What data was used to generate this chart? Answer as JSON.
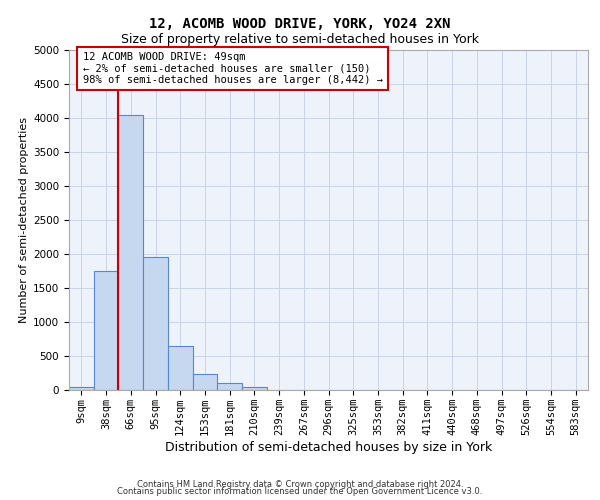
{
  "title_line1": "12, ACOMB WOOD DRIVE, YORK, YO24 2XN",
  "title_line2": "Size of property relative to semi-detached houses in York",
  "xlabel": "Distribution of semi-detached houses by size in York",
  "ylabel": "Number of semi-detached properties",
  "footer_line1": "Contains HM Land Registry data © Crown copyright and database right 2024.",
  "footer_line2": "Contains public sector information licensed under the Open Government Licence v3.0.",
  "bin_labels": [
    "9sqm",
    "38sqm",
    "66sqm",
    "95sqm",
    "124sqm",
    "153sqm",
    "181sqm",
    "210sqm",
    "239sqm",
    "267sqm",
    "296sqm",
    "325sqm",
    "353sqm",
    "382sqm",
    "411sqm",
    "440sqm",
    "468sqm",
    "497sqm",
    "526sqm",
    "554sqm",
    "583sqm"
  ],
  "bar_values": [
    50,
    1750,
    4050,
    1950,
    650,
    230,
    100,
    50,
    0,
    0,
    0,
    0,
    0,
    0,
    0,
    0,
    0,
    0,
    0,
    0,
    0
  ],
  "bar_color": "#c5d8f0",
  "bar_edge_color": "#5588cc",
  "property_line_x": 1.5,
  "property_line_color": "#cc0000",
  "annotation_text": "12 ACOMB WOOD DRIVE: 49sqm\n← 2% of semi-detached houses are smaller (150)\n98% of semi-detached houses are larger (8,442) →",
  "annotation_box_color": "#cc0000",
  "ylim": [
    0,
    5000
  ],
  "yticks": [
    0,
    500,
    1000,
    1500,
    2000,
    2500,
    3000,
    3500,
    4000,
    4500,
    5000
  ],
  "grid_color": "#c8d4e8",
  "background_color": "#eef2fa",
  "title_fontsize": 10,
  "subtitle_fontsize": 9,
  "ylabel_fontsize": 8,
  "xlabel_fontsize": 9,
  "tick_fontsize": 7.5,
  "footer_fontsize": 6,
  "annot_fontsize": 7.5
}
